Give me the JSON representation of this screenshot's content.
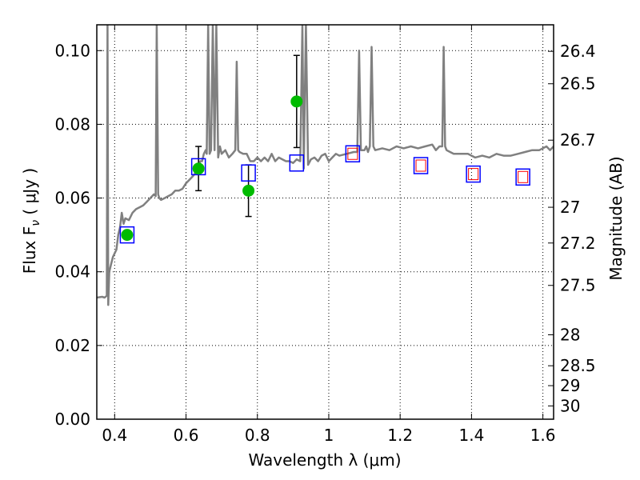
{
  "chart_data": {
    "type": "scatter",
    "xlabel": "Wavelength  λ (μm)",
    "ylabel": "Flux  F",
    "ylabel_subscript": "ν",
    "ylabel_unit": " ( μJy )",
    "y2label": "Magnitude (AB)",
    "xlim": [
      0.35,
      1.63
    ],
    "ylim": [
      0.0,
      0.107
    ],
    "xticks": [
      0.4,
      0.6,
      0.8,
      1.0,
      1.2,
      1.4,
      1.6
    ],
    "xtick_labels": [
      "0.4",
      "0.6",
      "0.8",
      "1",
      "1.2",
      "1.4",
      "1.6"
    ],
    "yticks": [
      0.0,
      0.02,
      0.04,
      0.06,
      0.08,
      0.1
    ],
    "ytick_labels": [
      "0.00",
      "0.02",
      "0.04",
      "0.06",
      "0.08",
      "0.10"
    ],
    "y2ticks": [
      {
        "label": "26.4",
        "flux": 0.0998
      },
      {
        "label": "26.5",
        "flux": 0.091
      },
      {
        "label": "26.7",
        "flux": 0.0757
      },
      {
        "label": "27",
        "flux": 0.0575
      },
      {
        "label": "27.2",
        "flux": 0.0478
      },
      {
        "label": "27.5",
        "flux": 0.0363
      },
      {
        "label": "28",
        "flux": 0.0229
      },
      {
        "label": "28.5",
        "flux": 0.0145
      },
      {
        "label": "29",
        "flux": 0.0091
      },
      {
        "label": "30",
        "flux": 0.0036
      }
    ],
    "grid": true,
    "series": [
      {
        "kind": "spectrum",
        "color": "#808080",
        "x": [
          0.35,
          0.365,
          0.372,
          0.378,
          0.38,
          0.382,
          0.385,
          0.39,
          0.395,
          0.4,
          0.405,
          0.41,
          0.415,
          0.42,
          0.425,
          0.43,
          0.44,
          0.45,
          0.46,
          0.47,
          0.48,
          0.49,
          0.5,
          0.51,
          0.515,
          0.518,
          0.522,
          0.525,
          0.53,
          0.54,
          0.55,
          0.56,
          0.57,
          0.58,
          0.59,
          0.6,
          0.61,
          0.62,
          0.628,
          0.632,
          0.636,
          0.64,
          0.645,
          0.65,
          0.655,
          0.658,
          0.662,
          0.666,
          0.67,
          0.675,
          0.68,
          0.685,
          0.69,
          0.695,
          0.7,
          0.71,
          0.72,
          0.73,
          0.738,
          0.742,
          0.746,
          0.75,
          0.76,
          0.77,
          0.78,
          0.79,
          0.8,
          0.81,
          0.82,
          0.83,
          0.84,
          0.85,
          0.86,
          0.87,
          0.88,
          0.89,
          0.9,
          0.91,
          0.92,
          0.926,
          0.93,
          0.936,
          0.942,
          0.95,
          0.96,
          0.97,
          0.98,
          0.99,
          1.0,
          1.01,
          1.02,
          1.03,
          1.05,
          1.07,
          1.08,
          1.085,
          1.09,
          1.095,
          1.1,
          1.105,
          1.11,
          1.115,
          1.12,
          1.125,
          1.13,
          1.15,
          1.17,
          1.19,
          1.21,
          1.23,
          1.25,
          1.27,
          1.29,
          1.3,
          1.31,
          1.318,
          1.322,
          1.326,
          1.33,
          1.34,
          1.35,
          1.37,
          1.39,
          1.41,
          1.43,
          1.45,
          1.47,
          1.49,
          1.51,
          1.53,
          1.55,
          1.57,
          1.59,
          1.6,
          1.61,
          1.62,
          1.63
        ],
        "y": [
          0.033,
          0.0332,
          0.033,
          0.0335,
          0.107,
          0.031,
          0.04,
          0.042,
          0.044,
          0.045,
          0.046,
          0.05,
          0.052,
          0.056,
          0.053,
          0.0545,
          0.054,
          0.056,
          0.057,
          0.0575,
          0.058,
          0.059,
          0.06,
          0.061,
          0.0605,
          0.107,
          0.061,
          0.06,
          0.0595,
          0.06,
          0.0605,
          0.061,
          0.062,
          0.062,
          0.0625,
          0.064,
          0.065,
          0.066,
          0.067,
          0.069,
          0.069,
          0.07,
          0.07,
          0.072,
          0.073,
          0.072,
          0.107,
          0.072,
          0.073,
          0.107,
          0.073,
          0.107,
          0.071,
          0.074,
          0.072,
          0.073,
          0.071,
          0.072,
          0.073,
          0.097,
          0.073,
          0.0725,
          0.072,
          0.072,
          0.07,
          0.07,
          0.071,
          0.07,
          0.071,
          0.07,
          0.072,
          0.07,
          0.071,
          0.0705,
          0.07,
          0.07,
          0.0695,
          0.0705,
          0.07,
          0.107,
          0.068,
          0.107,
          0.069,
          0.0705,
          0.071,
          0.07,
          0.0715,
          0.072,
          0.07,
          0.071,
          0.072,
          0.0715,
          0.072,
          0.0725,
          0.0725,
          0.1,
          0.073,
          0.073,
          0.073,
          0.074,
          0.0725,
          0.074,
          0.101,
          0.074,
          0.073,
          0.0735,
          0.073,
          0.074,
          0.0735,
          0.074,
          0.0735,
          0.074,
          0.0745,
          0.073,
          0.074,
          0.074,
          0.101,
          0.074,
          0.073,
          0.0725,
          0.072,
          0.072,
          0.072,
          0.071,
          0.0715,
          0.071,
          0.072,
          0.0715,
          0.0715,
          0.072,
          0.0725,
          0.073,
          0.073,
          0.0735,
          0.074,
          0.073,
          0.074
        ]
      },
      {
        "kind": "blue_squares",
        "color": "#0000ff",
        "x": [
          0.435,
          0.635,
          0.775,
          0.91,
          1.067,
          1.258,
          1.405,
          1.544
        ],
        "y": [
          0.05,
          0.0685,
          0.0668,
          0.0695,
          0.072,
          0.0688,
          0.0665,
          0.0657
        ]
      },
      {
        "kind": "red_squares",
        "color": "#ff0000",
        "x": [
          1.067,
          1.258,
          1.405,
          1.544
        ],
        "y": [
          0.072,
          0.0688,
          0.0665,
          0.0657
        ]
      },
      {
        "kind": "green_points",
        "color": "#00bb00",
        "x": [
          0.435,
          0.635,
          0.775,
          0.91
        ],
        "y": [
          0.05,
          0.068,
          0.062,
          0.0862
        ],
        "yerr": [
          null,
          0.006,
          0.007,
          0.0125
        ]
      }
    ]
  }
}
